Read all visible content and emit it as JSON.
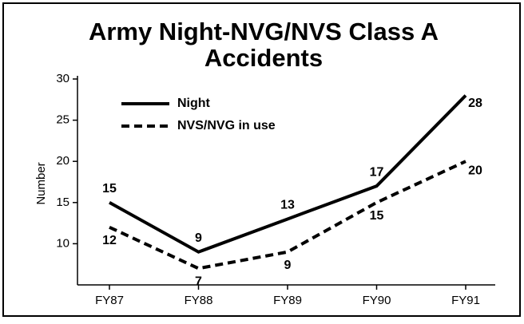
{
  "chart_data": {
    "type": "line",
    "title": "Army Night-NVG/NVS Class A",
    "title_line2": "Accidents",
    "y_label": "Number",
    "categories": [
      "FY87",
      "FY88",
      "FY89",
      "FY90",
      "FY91"
    ],
    "series": [
      {
        "name": "Night",
        "color": "#000000",
        "line_style": "solid",
        "values": [
          15,
          9,
          13,
          17,
          28
        ]
      },
      {
        "name": "NVS/NVG in use",
        "color": "#000000",
        "line_style": "dashed",
        "values": [
          12,
          7,
          9,
          15,
          20
        ]
      }
    ],
    "ylim": [
      5,
      30
    ],
    "yticks": [
      10,
      15,
      20,
      25,
      30
    ],
    "grid": false,
    "legend": "upper left"
  }
}
